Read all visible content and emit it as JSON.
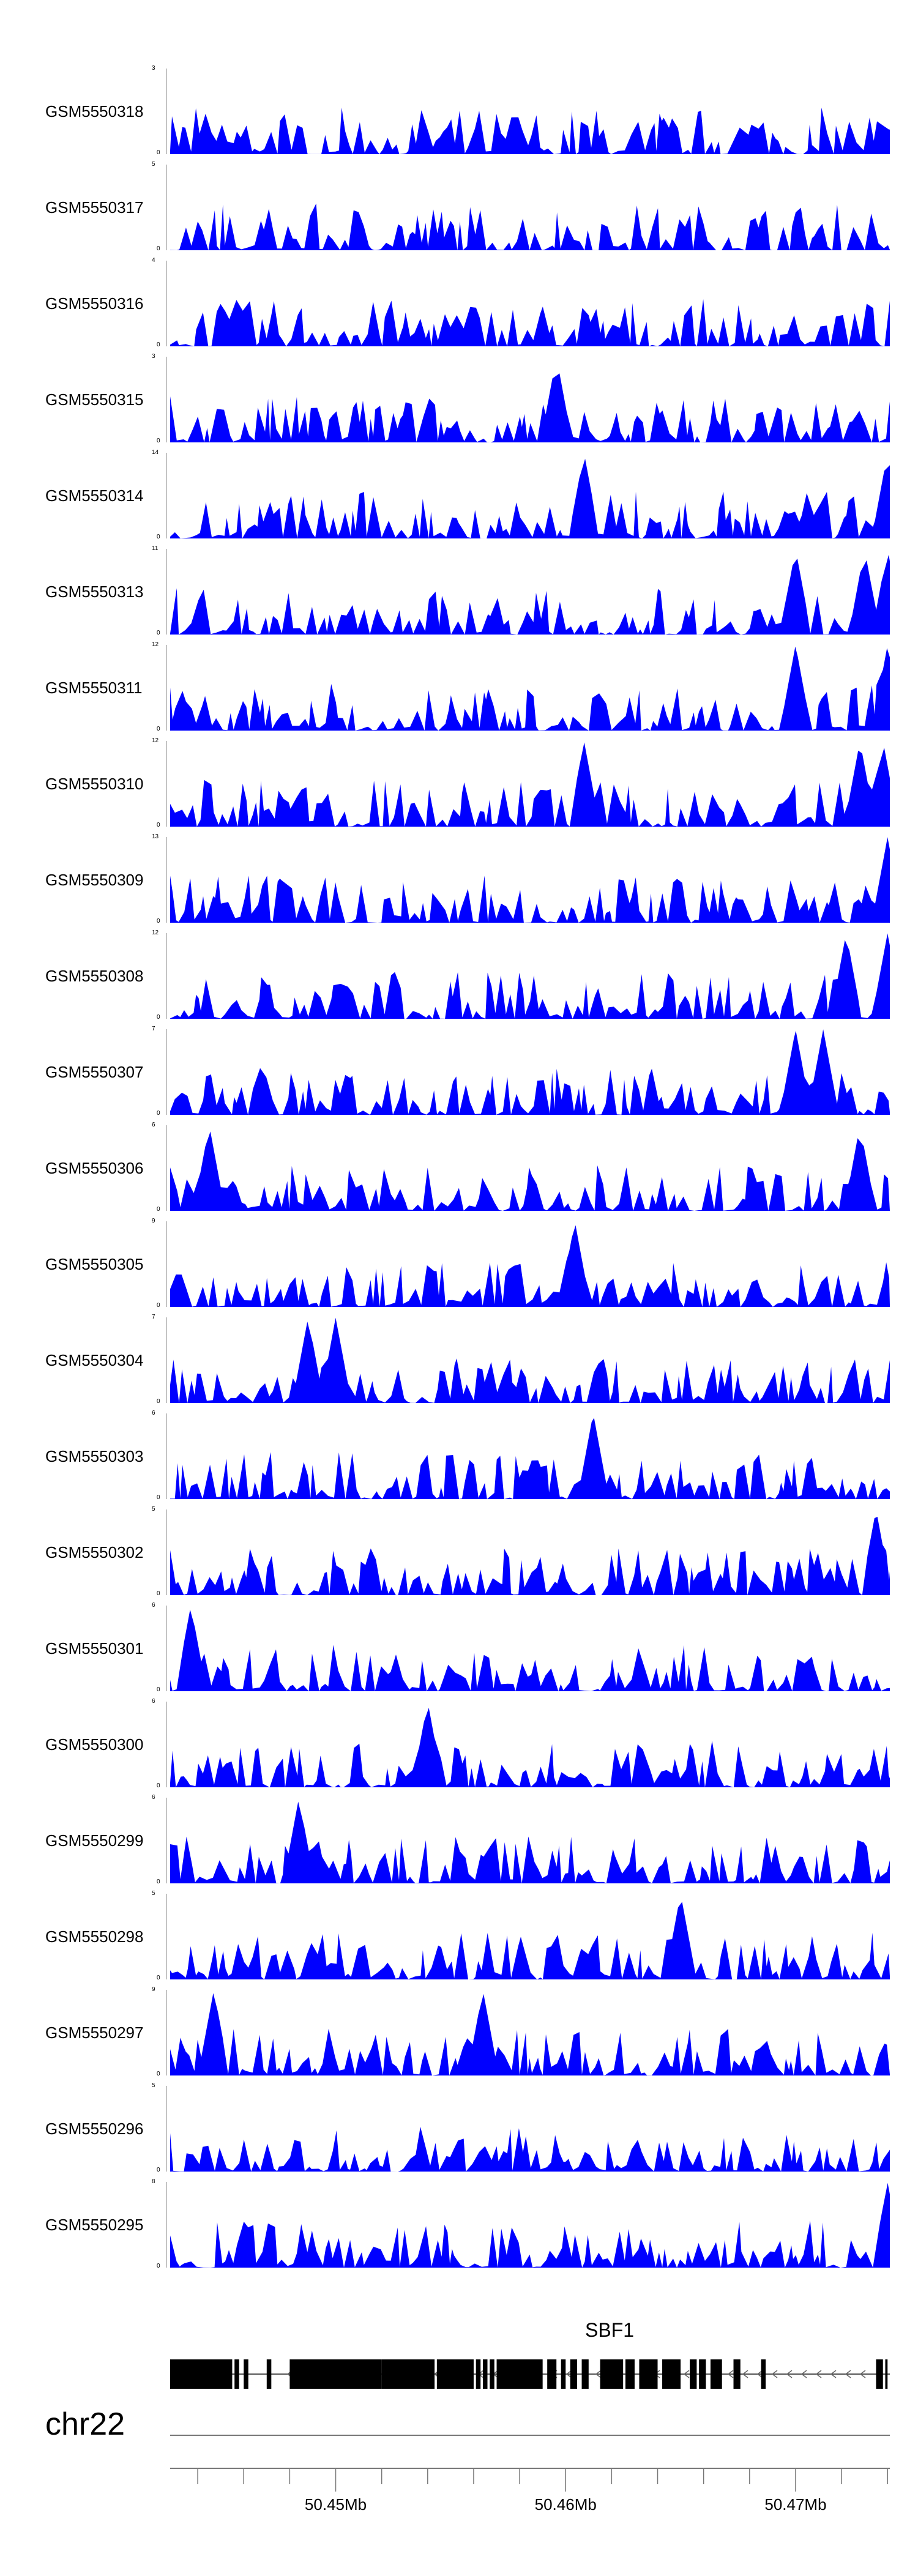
{
  "chart_data": {
    "type": "area",
    "color": "#0000ff",
    "x_unit": "Mb",
    "xlim": [
      50.4428,
      50.4741
    ],
    "tracks": [
      {
        "name": "GSM5550318",
        "ymax": 3,
        "ymin": 0,
        "peak_mb": []
      },
      {
        "name": "GSM5550317",
        "ymax": 5,
        "ymin": 0,
        "peak_mb": []
      },
      {
        "name": "GSM5550316",
        "ymax": 4,
        "ymin": 0,
        "peak_mb": []
      },
      {
        "name": "GSM5550315",
        "ymax": 3,
        "ymin": 0,
        "peak_mb": [
          50.4596
        ]
      },
      {
        "name": "GSM5550314",
        "ymax": 14,
        "ymin": 0,
        "peak_mb": [
          50.4608,
          50.474
        ]
      },
      {
        "name": "GSM5550313",
        "ymax": 11,
        "ymin": 0,
        "peak_mb": [
          50.47,
          50.473,
          50.474
        ]
      },
      {
        "name": "GSM5550311",
        "ymax": 12,
        "ymin": 0,
        "peak_mb": [
          50.47,
          50.474
        ]
      },
      {
        "name": "GSM5550310",
        "ymax": 12,
        "ymin": 0,
        "peak_mb": [
          50.4608,
          50.4728,
          50.4738
        ]
      },
      {
        "name": "GSM5550309",
        "ymax": 13,
        "ymin": 0,
        "peak_mb": [
          50.474
        ]
      },
      {
        "name": "GSM5550308",
        "ymax": 12,
        "ymin": 0,
        "peak_mb": [
          50.4722,
          50.474
        ]
      },
      {
        "name": "GSM5550307",
        "ymax": 7,
        "ymin": 0,
        "peak_mb": [
          50.47,
          50.4712
        ]
      },
      {
        "name": "GSM5550306",
        "ymax": 6,
        "ymin": 0,
        "peak_mb": [
          50.4445,
          50.4728
        ]
      },
      {
        "name": "GSM5550305",
        "ymax": 9,
        "ymin": 0,
        "peak_mb": [
          50.4604
        ]
      },
      {
        "name": "GSM5550304",
        "ymax": 7,
        "ymin": 0,
        "peak_mb": [
          50.4488,
          50.45
        ]
      },
      {
        "name": "GSM5550303",
        "ymax": 6,
        "ymin": 0,
        "peak_mb": [
          50.4612
        ]
      },
      {
        "name": "GSM5550302",
        "ymax": 5,
        "ymin": 0,
        "peak_mb": [
          50.4735
        ]
      },
      {
        "name": "GSM5550301",
        "ymax": 6,
        "ymin": 0,
        "peak_mb": [
          50.4437
        ]
      },
      {
        "name": "GSM5550300",
        "ymax": 6,
        "ymin": 0,
        "peak_mb": [
          50.454
        ]
      },
      {
        "name": "GSM5550299",
        "ymax": 6,
        "ymin": 0,
        "peak_mb": [
          50.4484
        ]
      },
      {
        "name": "GSM5550298",
        "ymax": 5,
        "ymin": 0,
        "peak_mb": [
          50.465
        ]
      },
      {
        "name": "GSM5550297",
        "ymax": 9,
        "ymin": 0,
        "peak_mb": [
          50.4447,
          50.4564
        ]
      },
      {
        "name": "GSM5550296",
        "ymax": 5,
        "ymin": 0,
        "peak_mb": []
      },
      {
        "name": "GSM5550295",
        "ymax": 8,
        "ymin": 0,
        "peak_mb": [
          50.474
        ]
      }
    ],
    "gene": {
      "name": "SBF1",
      "strand": "-",
      "exon_blocks_mb": [
        [
          50.4428,
          50.4455
        ],
        [
          50.4456,
          50.4458
        ],
        [
          50.446,
          50.4462
        ],
        [
          50.447,
          50.4472
        ],
        [
          50.448,
          50.452
        ],
        [
          50.452,
          50.4543
        ],
        [
          50.4544,
          50.456
        ],
        [
          50.4561,
          50.4563
        ],
        [
          50.4564,
          50.4566
        ],
        [
          50.4567,
          50.4569
        ],
        [
          50.457,
          50.459
        ],
        [
          50.4592,
          50.4596
        ],
        [
          50.4598,
          50.46
        ],
        [
          50.4602,
          50.4605
        ],
        [
          50.4607,
          50.461
        ],
        [
          50.4615,
          50.4625
        ],
        [
          50.4626,
          50.463
        ],
        [
          50.4632,
          50.464
        ],
        [
          50.4642,
          50.465
        ],
        [
          50.4654,
          50.4657
        ],
        [
          50.4658,
          50.4661
        ],
        [
          50.4663,
          50.4668
        ],
        [
          50.4673,
          50.4676
        ],
        [
          50.4685,
          50.4687
        ],
        [
          50.4735,
          50.4738
        ],
        [
          50.4739,
          50.474
        ]
      ]
    },
    "chromosome": "chr22",
    "axis": {
      "ticks_mb": [
        50.444,
        50.446,
        50.448,
        50.45,
        50.452,
        50.454,
        50.456,
        50.458,
        50.46,
        50.462,
        50.464,
        50.466,
        50.468,
        50.47,
        50.472,
        50.474
      ],
      "labeled_ticks": [
        {
          "mb": 50.45,
          "label": "50.45Mb"
        },
        {
          "mb": 50.46,
          "label": "50.46Mb"
        },
        {
          "mb": 50.47,
          "label": "50.47Mb"
        }
      ]
    }
  }
}
